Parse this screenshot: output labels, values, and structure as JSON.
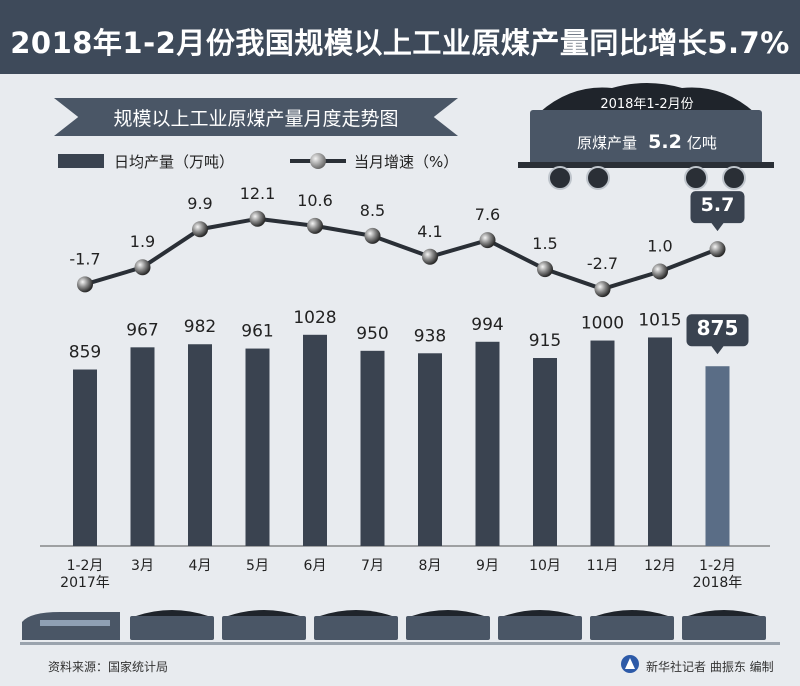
{
  "header": {
    "title": "2018年1-2月份我国规模以上工业原煤产量同比增长5.7%"
  },
  "subtitle": "规模以上工业原煤产量月度走势图",
  "legend": {
    "bar_label": "日均产量（万吨）",
    "line_label": "当月增速（%）"
  },
  "highlight_card": {
    "period": "2018年1-2月份",
    "label": "原煤产量",
    "value": "5.2",
    "unit": "亿吨"
  },
  "footer": {
    "source": "资料来源：国家统计局",
    "credit": "新华社记者 曲振东 编制"
  },
  "colors": {
    "header_bg": "#3e4a5a",
    "bar": "#3a4350",
    "bar_highlight": "#5a6d86",
    "line": "#2a2f36",
    "background": "#e8ebef"
  },
  "chart_data": {
    "type": "bar",
    "categories": [
      [
        "1-2月",
        "2017年"
      ],
      [
        "3月"
      ],
      [
        "4月"
      ],
      [
        "5月"
      ],
      [
        "6月"
      ],
      [
        "7月"
      ],
      [
        "8月"
      ],
      [
        "9月"
      ],
      [
        "10月"
      ],
      [
        "11月"
      ],
      [
        "12月"
      ],
      [
        "1-2月",
        "2018年"
      ]
    ],
    "series": [
      {
        "name": "日均产量（万吨）",
        "type": "bar",
        "values": [
          859,
          967,
          982,
          961,
          1028,
          950,
          938,
          994,
          915,
          1000,
          1015,
          875
        ]
      },
      {
        "name": "当月增速（%）",
        "type": "line",
        "values": [
          -1.7,
          1.9,
          9.9,
          12.1,
          10.6,
          8.5,
          4.1,
          7.6,
          1.5,
          -2.7,
          1.0,
          5.7
        ]
      }
    ],
    "bar_labels": [
      "859",
      "967",
      "982",
      "961",
      "1028",
      "950",
      "938",
      "994",
      "915",
      "1000",
      "1015",
      "875"
    ],
    "line_labels": [
      "-1.7",
      "1.9",
      "9.9",
      "12.1",
      "10.6",
      "8.5",
      "4.1",
      "7.6",
      "1.5",
      "-2.7",
      "1.0",
      "5.7"
    ],
    "highlight_index": 11,
    "bar_ylim": [
      0,
      1100
    ],
    "line_ylim": [
      -5,
      15
    ]
  }
}
